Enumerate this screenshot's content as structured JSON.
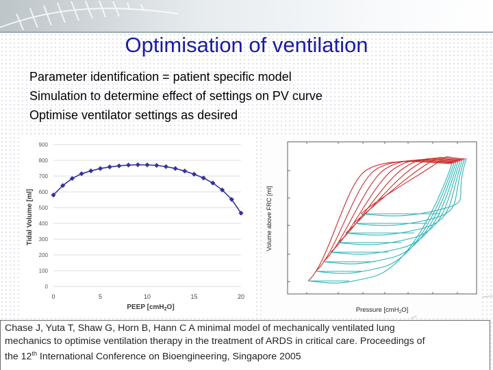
{
  "slide": {
    "title": "Optimisation of ventilation",
    "bullets": [
      "Parameter identification = patient specific model",
      "Simulation to determine effect of settings on PV curve",
      "Optimise ventilator settings as desired"
    ],
    "citation": {
      "line1": "Chase J, Yuta T, Shaw G, Horn B, Hann C A minimal model of mechanically ventilated lung",
      "line2": "mechanics to optimise ventilation therapy in the treatment of ARDS in critical care. Proceedings of",
      "line3_a": "the 12",
      "line3_sup": "th",
      "line3_b": " International Conference on Bioengineering, Singapore 2005"
    }
  },
  "colors": {
    "title": "#1a1aa6",
    "line1": "#33339a",
    "pv_red": "#cc2b2b",
    "pv_cyan": "#2ab3b3"
  },
  "chart_data": [
    {
      "type": "line",
      "xlabel": "PEEP [cmH2O]",
      "ylabel": "Tidal Volume [ml]",
      "xlim": [
        0,
        20
      ],
      "ylim": [
        0,
        900
      ],
      "x_ticks": [
        "0",
        "5",
        "10",
        "15",
        "20"
      ],
      "y_ticks": [
        "0",
        "100",
        "200",
        "300",
        "400",
        "500",
        "600",
        "700",
        "800",
        "900"
      ],
      "x": [
        0,
        1,
        2,
        3,
        4,
        5,
        6,
        7,
        8,
        9,
        10,
        11,
        12,
        13,
        14,
        15,
        16,
        17,
        18,
        19,
        20
      ],
      "values": [
        580,
        640,
        685,
        715,
        733,
        748,
        758,
        765,
        770,
        772,
        771,
        768,
        760,
        748,
        732,
        712,
        688,
        656,
        612,
        552,
        465
      ]
    },
    {
      "type": "line",
      "xlabel": "Pressure [cmH2O]",
      "ylabel": "Volume above FRC [ml]",
      "series": [
        {
          "color": "red",
          "count": 8
        },
        {
          "color": "cyan",
          "count": 8
        }
      ]
    }
  ]
}
